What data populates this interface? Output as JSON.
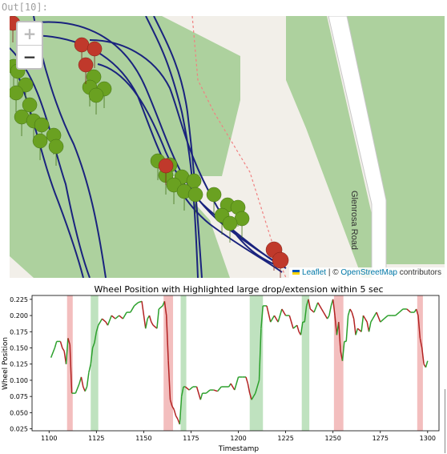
{
  "cell": {
    "out_label": "Out[10]:"
  },
  "map": {
    "zoom_in": "+",
    "zoom_out": "−",
    "road_label": "Glenrosa Road",
    "attribution": {
      "leaflet": "Leaflet",
      "separator": " | © ",
      "osm": "OpenStreetMap",
      "contributors": " contributors"
    },
    "colors": {
      "land": "#f2efe9",
      "forest": "#add19e",
      "road": "#ffffff",
      "track": "#1a237e",
      "marker_red": "#c0392b",
      "marker_green": "#6aa121",
      "path": "#f08080"
    }
  },
  "chart_data": {
    "type": "line",
    "title": "Wheel Position with Highlighted large drop/extension within 5 sec",
    "xlabel": "Timestamp",
    "ylabel": "Wheel Position",
    "xlim": [
      1091,
      1306
    ],
    "ylim": [
      0.022,
      0.231
    ],
    "xticks": [
      1100,
      1125,
      1150,
      1175,
      1200,
      1225,
      1250,
      1275,
      1300
    ],
    "yticks": [
      0.025,
      0.05,
      0.075,
      0.1,
      0.125,
      0.15,
      0.175,
      0.2,
      0.225
    ],
    "ytick_labels": [
      "0.025",
      "0.050",
      "0.075",
      "0.100",
      "0.125",
      "0.150",
      "0.175",
      "0.200",
      "0.225"
    ],
    "drop_color": "#d62728",
    "extension_color": "#2ca02c",
    "highlights": [
      {
        "kind": "drop",
        "x0": 1109.5,
        "x1": 1112.5
      },
      {
        "kind": "extension",
        "x0": 1122,
        "x1": 1126
      },
      {
        "kind": "drop",
        "x0": 1160.5,
        "x1": 1165.5
      },
      {
        "kind": "extension",
        "x0": 1169.5,
        "x1": 1172.5
      },
      {
        "kind": "extension",
        "x0": 1206,
        "x1": 1213
      },
      {
        "kind": "extension",
        "x0": 1233.5,
        "x1": 1237.5
      },
      {
        "kind": "drop",
        "x0": 1250.5,
        "x1": 1255.5
      },
      {
        "kind": "drop",
        "x0": 1294.5,
        "x1": 1297.5
      }
    ],
    "x": [
      1101,
      1103,
      1104,
      1106,
      1107,
      1108,
      1109,
      1110,
      1111,
      1112,
      1114,
      1116,
      1117,
      1118,
      1119,
      1120,
      1121,
      1122,
      1123,
      1124,
      1125,
      1126,
      1128,
      1130,
      1131,
      1133,
      1135,
      1137,
      1139,
      1141,
      1143,
      1145,
      1147,
      1149,
      1151,
      1152,
      1153,
      1154,
      1155,
      1157,
      1158,
      1160,
      1161,
      1162,
      1163,
      1164,
      1165,
      1166,
      1167,
      1168,
      1169,
      1170,
      1171,
      1172,
      1174,
      1176,
      1178,
      1180,
      1181,
      1183,
      1185,
      1187,
      1189,
      1191,
      1193,
      1195,
      1196,
      1198,
      1200,
      1202,
      1204,
      1205,
      1206,
      1207,
      1208,
      1209,
      1211,
      1212,
      1213,
      1215,
      1217,
      1219,
      1221,
      1223,
      1225,
      1227,
      1229,
      1231,
      1232,
      1233,
      1234,
      1235,
      1236,
      1237,
      1238,
      1240,
      1242,
      1244,
      1245,
      1247,
      1248,
      1249,
      1250,
      1251,
      1252,
      1253,
      1254,
      1255,
      1256,
      1257,
      1258,
      1259,
      1260,
      1261,
      1262,
      1263,
      1265,
      1266,
      1267,
      1268,
      1269,
      1270,
      1271,
      1273,
      1275,
      1277,
      1279,
      1281,
      1283,
      1285,
      1287,
      1289,
      1291,
      1293,
      1294,
      1295,
      1296,
      1297,
      1298,
      1299,
      1300
    ],
    "y": [
      0.135,
      0.15,
      0.16,
      0.16,
      0.15,
      0.145,
      0.125,
      0.165,
      0.155,
      0.08,
      0.08,
      0.095,
      0.105,
      0.09,
      0.083,
      0.09,
      0.112,
      0.125,
      0.15,
      0.158,
      0.175,
      0.185,
      0.195,
      0.19,
      0.185,
      0.2,
      0.195,
      0.2,
      0.195,
      0.205,
      0.205,
      0.215,
      0.22,
      0.222,
      0.18,
      0.195,
      0.2,
      0.19,
      0.185,
      0.18,
      0.21,
      0.215,
      0.222,
      0.2,
      0.13,
      0.07,
      0.06,
      0.055,
      0.045,
      0.04,
      0.032,
      0.075,
      0.09,
      0.09,
      0.085,
      0.09,
      0.09,
      0.07,
      0.08,
      0.08,
      0.085,
      0.085,
      0.083,
      0.09,
      0.09,
      0.09,
      0.095,
      0.085,
      0.105,
      0.105,
      0.105,
      0.095,
      0.08,
      0.07,
      0.075,
      0.08,
      0.1,
      0.18,
      0.215,
      0.215,
      0.19,
      0.2,
      0.19,
      0.21,
      0.2,
      0.2,
      0.18,
      0.185,
      0.175,
      0.17,
      0.19,
      0.19,
      0.215,
      0.225,
      0.21,
      0.205,
      0.22,
      0.21,
      0.205,
      0.195,
      0.2,
      0.215,
      0.225,
      0.2,
      0.17,
      0.19,
      0.145,
      0.13,
      0.16,
      0.16,
      0.2,
      0.21,
      0.205,
      0.195,
      0.17,
      0.18,
      0.175,
      0.2,
      0.195,
      0.19,
      0.175,
      0.19,
      0.195,
      0.205,
      0.19,
      0.195,
      0.2,
      0.2,
      0.2,
      0.205,
      0.21,
      0.21,
      0.205,
      0.205,
      0.21,
      0.2,
      0.165,
      0.15,
      0.125,
      0.12,
      0.13
    ]
  }
}
